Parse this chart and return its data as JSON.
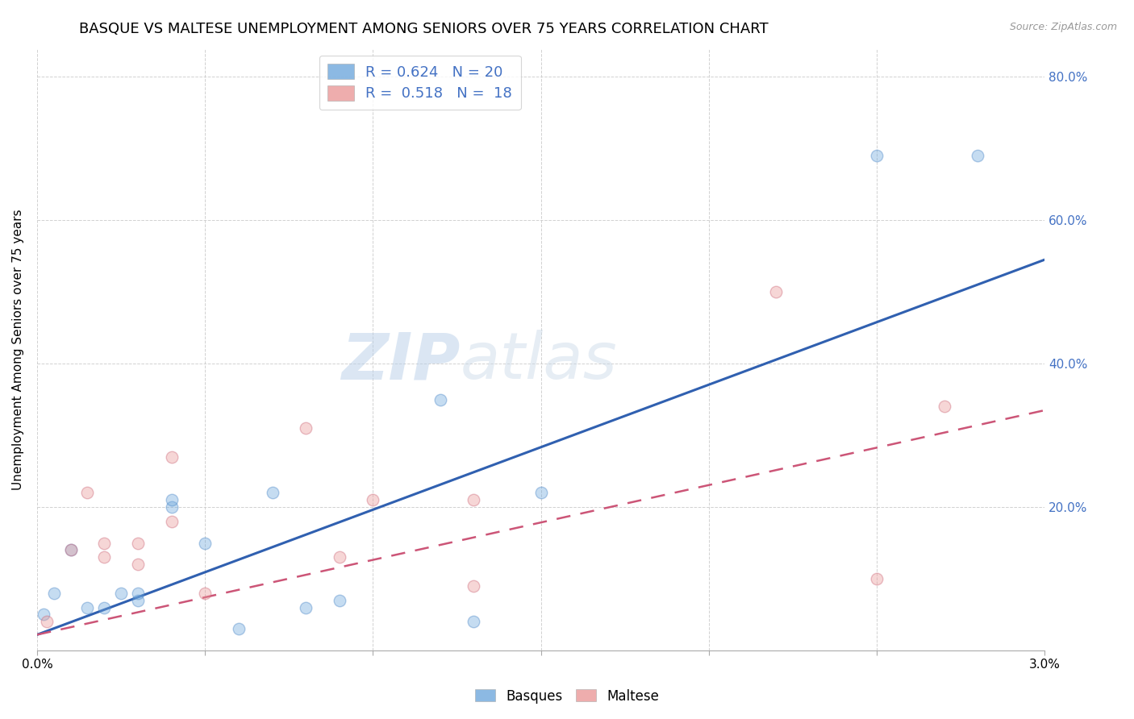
{
  "title": "BASQUE VS MALTESE UNEMPLOYMENT AMONG SENIORS OVER 75 YEARS CORRELATION CHART",
  "source": "Source: ZipAtlas.com",
  "ylabel": "Unemployment Among Seniors over 75 years",
  "xlim": [
    0.0,
    0.03
  ],
  "ylim": [
    0.0,
    0.84
  ],
  "xticks": [
    0.0,
    0.005,
    0.01,
    0.015,
    0.02,
    0.025,
    0.03
  ],
  "xticklabels": [
    "0.0%",
    "",
    "",
    "",
    "",
    "",
    "3.0%"
  ],
  "yticks": [
    0.0,
    0.2,
    0.4,
    0.6,
    0.8
  ],
  "yticklabels_right": [
    "",
    "20.0%",
    "40.0%",
    "60.0%",
    "80.0%"
  ],
  "basques_color": "#6fa8dc",
  "basques_edge": "#4a86c8",
  "maltese_color": "#ea9999",
  "maltese_edge": "#cc6677",
  "blue_line_color": "#3060b0",
  "pink_line_color": "#cc5577",
  "basques_R": 0.624,
  "basques_N": 20,
  "maltese_R": 0.518,
  "maltese_N": 18,
  "watermark_zip": "ZIP",
  "watermark_atlas": "atlas",
  "basques_x": [
    0.0002,
    0.0005,
    0.001,
    0.0015,
    0.002,
    0.0025,
    0.003,
    0.003,
    0.004,
    0.004,
    0.005,
    0.006,
    0.007,
    0.008,
    0.009,
    0.012,
    0.013,
    0.015,
    0.025,
    0.028
  ],
  "basques_y": [
    0.05,
    0.08,
    0.14,
    0.06,
    0.06,
    0.08,
    0.07,
    0.08,
    0.2,
    0.21,
    0.15,
    0.03,
    0.22,
    0.06,
    0.07,
    0.35,
    0.04,
    0.22,
    0.69,
    0.69
  ],
  "maltese_x": [
    0.0003,
    0.001,
    0.0015,
    0.002,
    0.002,
    0.003,
    0.003,
    0.004,
    0.004,
    0.005,
    0.008,
    0.009,
    0.01,
    0.013,
    0.013,
    0.022,
    0.025,
    0.027
  ],
  "maltese_y": [
    0.04,
    0.14,
    0.22,
    0.13,
    0.15,
    0.12,
    0.15,
    0.18,
    0.27,
    0.08,
    0.31,
    0.13,
    0.21,
    0.21,
    0.09,
    0.5,
    0.1,
    0.34
  ],
  "blue_line_x0": 0.0,
  "blue_line_y0": 0.022,
  "blue_line_x1": 0.03,
  "blue_line_y1": 0.545,
  "pink_line_x0": 0.0,
  "pink_line_y0": 0.022,
  "pink_line_x1": 0.03,
  "pink_line_y1": 0.335,
  "grid_color": "#cccccc",
  "bg_color": "#ffffff",
  "title_fontsize": 13,
  "legend_fontsize": 13,
  "axis_fontsize": 11,
  "right_tick_color": "#4472c4",
  "marker_size": 110,
  "marker_alpha": 0.4
}
